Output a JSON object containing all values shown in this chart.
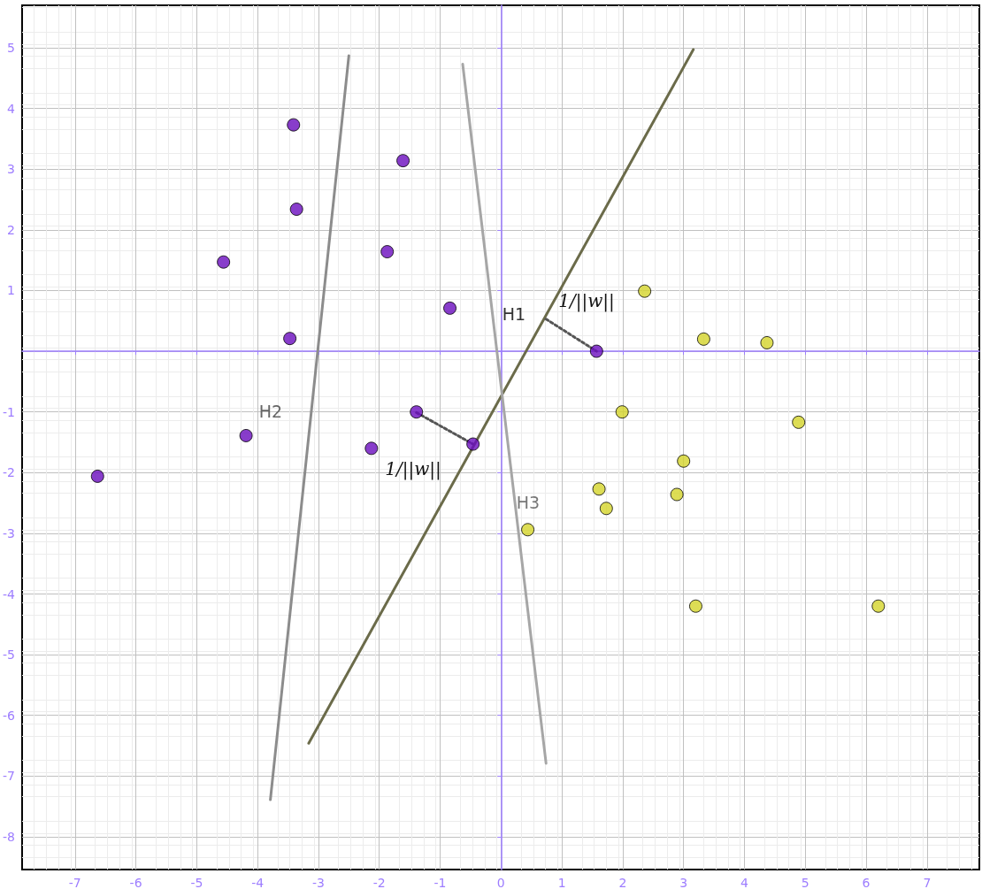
{
  "chart_data": {
    "type": "scatter",
    "xlim": [
      -7.87,
      7.86
    ],
    "ylim": [
      -8.54,
      5.7
    ],
    "xticks": [
      -7,
      -6,
      -5,
      -4,
      -3,
      -2,
      -1,
      0,
      1,
      2,
      3,
      4,
      5,
      6,
      7
    ],
    "yticks": [
      -8,
      -7,
      -6,
      -5,
      -4,
      -3,
      -2,
      -1,
      {
        "value": 0,
        "label": null
      },
      1,
      2,
      3,
      4,
      5
    ],
    "grid": true,
    "series": [
      {
        "marker": "circle",
        "color": "#6a0dbe",
        "x": [
          -3.41,
          -1.61,
          -3.36,
          -4.56,
          -1.87,
          -0.84,
          -3.47,
          1.57,
          -1.39,
          -0.46,
          -4.19,
          -2.13,
          -6.63
        ],
        "values": [
          3.73,
          3.14,
          2.34,
          1.47,
          1.64,
          0.71,
          0.21,
          0,
          -1.0,
          -1.53,
          -1.39,
          -1.6,
          -2.06
        ]
      },
      {
        "marker": "circle",
        "color": "#d4d42a",
        "x": [
          2.36,
          3.33,
          4.37,
          1.99,
          4.89,
          3.0,
          1.61,
          1.73,
          2.89,
          0.44,
          3.2,
          6.2
        ],
        "values": [
          0.99,
          0.2,
          0.14,
          -1.0,
          -1.17,
          -1.81,
          -2.27,
          -2.59,
          -2.36,
          -2.94,
          -4.2,
          -4.2
        ]
      },
      {
        "type": "line",
        "marker": "none",
        "line_style": "solid",
        "color": "#6b6b4a",
        "x": [
          -3.16,
          3.16
        ],
        "values": [
          -6.46,
          4.97
        ]
      },
      {
        "type": "line",
        "marker": "none",
        "line_style": "solid",
        "color": "#8c8c8c",
        "x": [
          -3.79,
          -2.5
        ],
        "values": [
          -7.39,
          4.87
        ]
      },
      {
        "type": "line",
        "marker": "none",
        "line_style": "solid",
        "color": "#a6a6a6",
        "x": [
          -0.63,
          0.74
        ],
        "values": [
          4.73,
          -6.79
        ]
      },
      {
        "type": "line",
        "marker": "none",
        "line_style": "dotted",
        "color": "#555555",
        "x": [
          0.74,
          1.57
        ],
        "values": [
          0.53,
          0
        ]
      },
      {
        "type": "line",
        "marker": "none",
        "line_style": "dotted",
        "color": "#555555",
        "x": [
          -1.39,
          -0.46
        ],
        "values": [
          -1.01,
          -1.53
        ]
      }
    ],
    "annotations": [
      "H1",
      "H2",
      "H3",
      "1/||w||",
      "1/||w||"
    ]
  }
}
